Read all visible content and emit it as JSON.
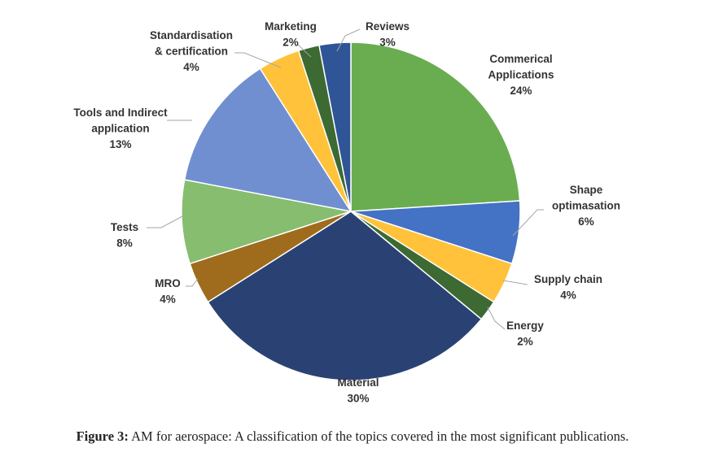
{
  "chart_data": {
    "type": "pie",
    "title": "",
    "slices": [
      {
        "name": "Commerical Applications",
        "label_lines": [
          "Commerical",
          "Applications"
        ],
        "value": 24,
        "value_label": "24%",
        "color": "#6aad50"
      },
      {
        "name": "Shape optimasation",
        "label_lines": [
          "Shape",
          "optimasation"
        ],
        "value": 6,
        "value_label": "6%",
        "color": "#4472c4"
      },
      {
        "name": "Supply chain",
        "label_lines": [
          "Supply chain"
        ],
        "value": 4,
        "value_label": "4%",
        "color": "#ffc23a"
      },
      {
        "name": "Energy",
        "label_lines": [
          "Energy"
        ],
        "value": 2,
        "value_label": "2%",
        "color": "#3d6933"
      },
      {
        "name": "Material",
        "label_lines": [
          "Material"
        ],
        "value": 30,
        "value_label": "30%",
        "color": "#2a4273"
      },
      {
        "name": "MRO",
        "label_lines": [
          "MRO"
        ],
        "value": 4,
        "value_label": "4%",
        "color": "#9e6c1c"
      },
      {
        "name": "Tests",
        "label_lines": [
          "Tests"
        ],
        "value": 8,
        "value_label": "8%",
        "color": "#86bd6e"
      },
      {
        "name": "Tools and Indirect application",
        "label_lines": [
          "Tools and Indirect",
          "application"
        ],
        "value": 13,
        "value_label": "13%",
        "color": "#6f8fd0"
      },
      {
        "name": "Standardisation & certification",
        "label_lines": [
          "Standardisation",
          "& certification"
        ],
        "value": 4,
        "value_label": "4%",
        "color": "#ffc23a"
      },
      {
        "name": "Marketing",
        "label_lines": [
          "Marketing"
        ],
        "value": 2,
        "value_label": "2%",
        "color": "#3d6933"
      },
      {
        "name": "Reviews",
        "label_lines": [
          "Reviews"
        ],
        "value": 3,
        "value_label": "3%",
        "color": "#2f5597"
      }
    ]
  },
  "caption": {
    "label": "Figure 3:",
    "text": " AM for aerospace: A classification of the topics covered in the most significant publications."
  }
}
